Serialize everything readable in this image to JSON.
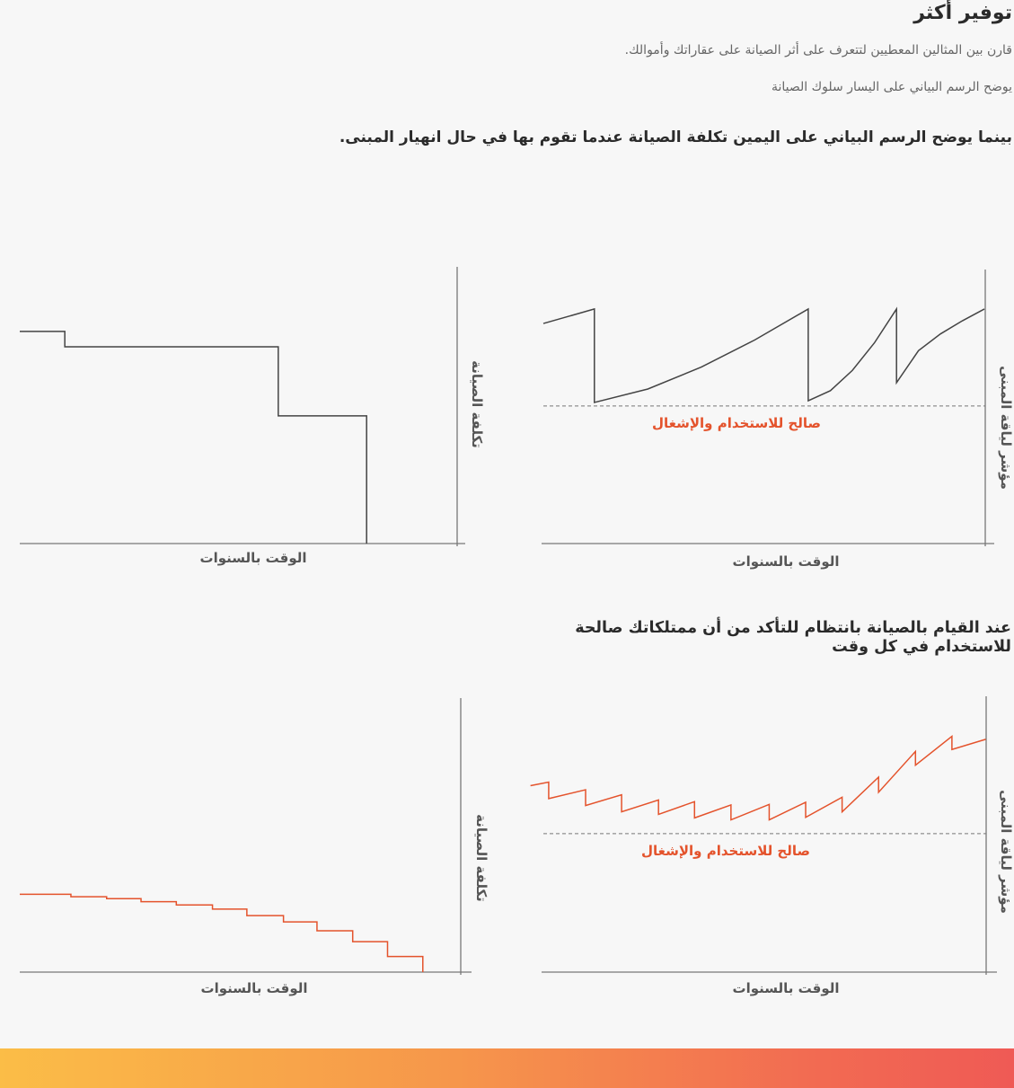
{
  "header": {
    "title": "توفير أكثر",
    "paragraph_1": "قارن بين المثالين المعطيين لتتعرف على أثر الصيانة على عقاراتك وأموالك.",
    "paragraph_2": "يوضح الرسم البياني على اليسار سلوك الصيانة"
  },
  "section_1": {
    "heading": "بينما يوضح الرسم البياني على اليمين تكلفة الصيانة عندما تقوم بها في حال انهيار المبنى."
  },
  "section_2": {
    "heading_line_1": "عند القيام بالصيانة بانتظام للتأكد من أن ممتلكاتك صالحة",
    "heading_line_2": "للاستخدام في كل وقت"
  },
  "colors": {
    "line_dark": "#444444",
    "line_orange": "#e4532c",
    "axis": "#777777",
    "bar_start": "#fbbd47",
    "bar_end": "#ef5a55"
  },
  "chart_data": [
    {
      "id": "breakdown-cost",
      "type": "line",
      "title": "",
      "xlabel": "الوقت بالسنوات",
      "ylabel": "تكلفة الصيانة",
      "xlim": [
        0,
        100
      ],
      "ylim": [
        0,
        100
      ],
      "color": "#444444",
      "series": [
        {
          "name": "cost",
          "points": [
            [
              0,
              77.4
            ],
            [
              10.3,
              77.4
            ],
            [
              10.3,
              71.8
            ],
            [
              59.1,
              71.8
            ],
            [
              59.1,
              46.6
            ],
            [
              79.3,
              46.6
            ],
            [
              79.3,
              0
            ]
          ]
        }
      ]
    },
    {
      "id": "breakdown-fitness",
      "type": "line",
      "xlabel": "الوقت بالسنوات",
      "ylabel": "مؤشر لياقة المبنى",
      "xlim": [
        0,
        100
      ],
      "ylim": [
        0,
        100
      ],
      "color": "#444444",
      "threshold": {
        "value": 50.2,
        "label": "صالح للاستخدام والإشغال"
      },
      "series": [
        {
          "name": "fitness",
          "points": [
            [
              0.4,
              80.3
            ],
            [
              11.9,
              85.6
            ],
            [
              11.9,
              51.5
            ],
            [
              23.95,
              56.4
            ],
            [
              36,
              64.4
            ],
            [
              48.05,
              74.3
            ],
            [
              60.1,
              85.6
            ],
            [
              60.1,
              52.1
            ],
            [
              65.1,
              55.8
            ],
            [
              70.05,
              63.2
            ],
            [
              75,
              73.2
            ],
            [
              80,
              85.6
            ],
            [
              80,
              58.7
            ],
            [
              84.95,
              70.4
            ],
            [
              89.9,
              76.5
            ],
            [
              94.85,
              81.3
            ],
            [
              99.8,
              85.6
            ]
          ]
        }
      ]
    },
    {
      "id": "regular-cost",
      "type": "line",
      "xlabel": "الوقت بالسنوات",
      "ylabel": "تكلفة الصيانة",
      "xlim": [
        0,
        100
      ],
      "ylim": [
        0,
        100
      ],
      "color": "#e4532c",
      "series": [
        {
          "name": "cost",
          "points": [
            [
              0,
              28.4
            ],
            [
              11.6,
              28.4
            ],
            [
              11.6,
              27.5
            ],
            [
              19.7,
              27.5
            ],
            [
              19.7,
              26.8
            ],
            [
              27.5,
              26.8
            ],
            [
              27.5,
              25.7
            ],
            [
              35.5,
              25.7
            ],
            [
              35.5,
              24.5
            ],
            [
              43.7,
              24.5
            ],
            [
              43.7,
              23.0
            ],
            [
              51.5,
              23.0
            ],
            [
              51.5,
              20.6
            ],
            [
              59.8,
              20.6
            ],
            [
              59.8,
              18.3
            ],
            [
              67.4,
              18.3
            ],
            [
              67.4,
              15.1
            ],
            [
              75.5,
              15.1
            ],
            [
              75.5,
              11.1
            ],
            [
              83.4,
              11.1
            ],
            [
              83.4,
              5.7
            ],
            [
              91.4,
              5.7
            ],
            [
              91.4,
              0
            ]
          ]
        }
      ]
    },
    {
      "id": "regular-fitness",
      "type": "line",
      "xlabel": "الوقت بالسنوات",
      "ylabel": "مؤشر لياقة المبنى",
      "xlim": [
        0,
        100
      ],
      "ylim": [
        0,
        100
      ],
      "color": "#e4532c",
      "threshold": {
        "value": 50.2,
        "label": "صالح للاستخدام والإشغال"
      },
      "series": [
        {
          "name": "fitness",
          "points": [
            [
              -2.5,
              67.6
            ],
            [
              1.6,
              68.9
            ],
            [
              1.6,
              62.9
            ],
            [
              9.9,
              66.1
            ],
            [
              9.9,
              60.4
            ],
            [
              18.0,
              64.3
            ],
            [
              18.0,
              58.1
            ],
            [
              26.3,
              62.4
            ],
            [
              26.3,
              57.2
            ],
            [
              34.4,
              61.8
            ],
            [
              34.4,
              55.9
            ],
            [
              42.6,
              60.6
            ],
            [
              42.6,
              55.2
            ],
            [
              51.2,
              60.8
            ],
            [
              51.2,
              55.2
            ],
            [
              59.4,
              61.6
            ],
            [
              59.4,
              56.1
            ],
            [
              67.6,
              63.4
            ],
            [
              67.6,
              58.1
            ],
            [
              75.8,
              70.7
            ],
            [
              75.8,
              65.2
            ],
            [
              84.1,
              80.0
            ],
            [
              84.1,
              75.0
            ],
            [
              92.3,
              85.5
            ],
            [
              92.3,
              80.7
            ],
            [
              99.9,
              84.4
            ]
          ]
        }
      ]
    }
  ]
}
